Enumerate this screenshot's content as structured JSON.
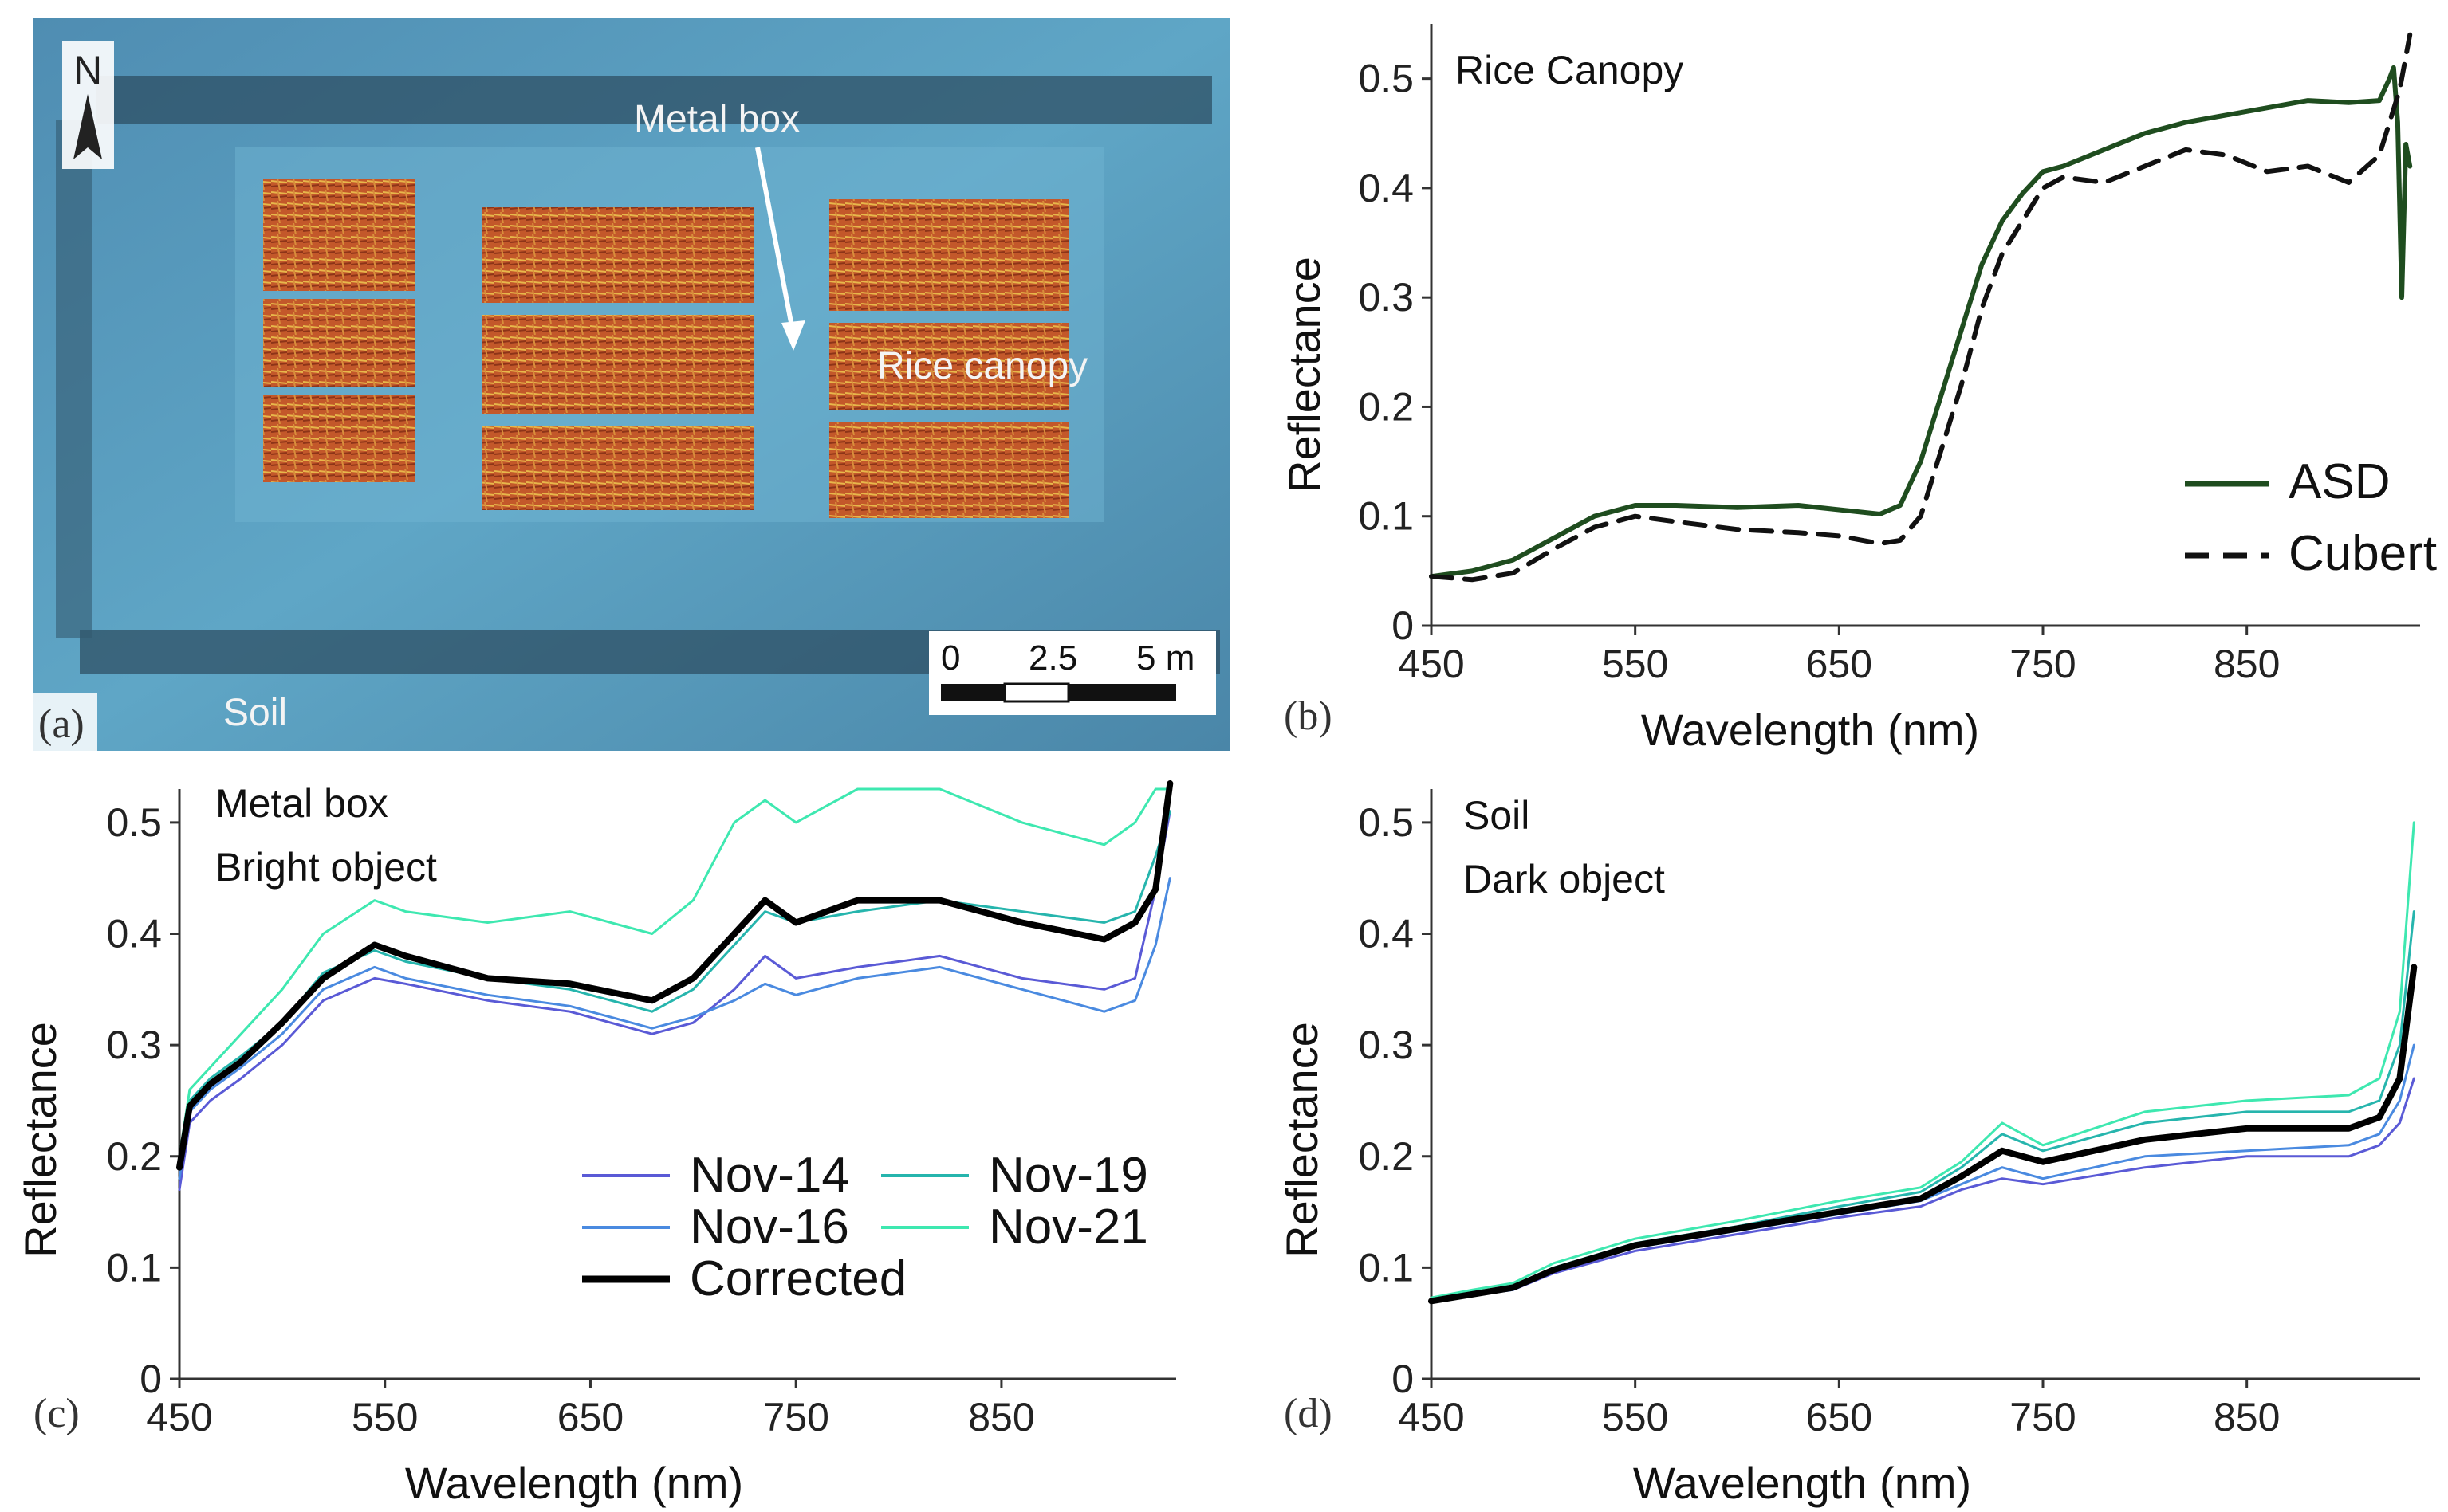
{
  "panel_a": {
    "tag": "(a)",
    "north": "N",
    "labels": {
      "metal_box": "Metal box",
      "rice_canopy": "Rice canopy",
      "soil": "Soil"
    },
    "scale_bar": {
      "t0": "0",
      "t1": "2.5",
      "t2": "5 m"
    }
  },
  "chart_data": [
    {
      "id": "b",
      "panel_tag": "(b)",
      "type": "line",
      "annotation": [
        "Rice Canopy"
      ],
      "xlabel": "Wavelength (nm)",
      "ylabel": "Reflectance",
      "xlim": [
        450,
        935
      ],
      "ylim": [
        0,
        0.55
      ],
      "xticks": [
        450,
        550,
        650,
        750,
        850
      ],
      "yticks": [
        0,
        0.1,
        0.2,
        0.3,
        0.4,
        0.5
      ],
      "ytick_labels": [
        "0",
        "0.1",
        "0.2",
        "0.3",
        "0.4",
        "0.5"
      ],
      "series": [
        {
          "name": "ASD",
          "color": "#1f4d1f",
          "style": "solid",
          "x": [
            450,
            470,
            490,
            510,
            530,
            550,
            570,
            600,
            630,
            650,
            670,
            680,
            690,
            700,
            710,
            720,
            730,
            740,
            750,
            760,
            780,
            800,
            820,
            850,
            880,
            900,
            915,
            920,
            922,
            924,
            926,
            928,
            930
          ],
          "y": [
            0.045,
            0.05,
            0.06,
            0.08,
            0.1,
            0.11,
            0.11,
            0.108,
            0.11,
            0.106,
            0.102,
            0.11,
            0.15,
            0.21,
            0.27,
            0.33,
            0.37,
            0.395,
            0.415,
            0.42,
            0.435,
            0.45,
            0.46,
            0.47,
            0.48,
            0.478,
            0.48,
            0.5,
            0.51,
            0.46,
            0.3,
            0.44,
            0.42
          ]
        },
        {
          "name": "Cubert",
          "color": "#111111",
          "style": "dashed",
          "x": [
            450,
            470,
            490,
            510,
            530,
            550,
            570,
            600,
            630,
            650,
            670,
            680,
            690,
            700,
            710,
            720,
            730,
            740,
            750,
            760,
            780,
            800,
            820,
            840,
            860,
            880,
            900,
            915,
            925,
            930
          ],
          "y": [
            0.045,
            0.042,
            0.048,
            0.07,
            0.09,
            0.1,
            0.095,
            0.088,
            0.085,
            0.082,
            0.075,
            0.078,
            0.1,
            0.16,
            0.22,
            0.29,
            0.34,
            0.37,
            0.4,
            0.41,
            0.405,
            0.42,
            0.435,
            0.43,
            0.415,
            0.42,
            0.405,
            0.43,
            0.49,
            0.54
          ]
        }
      ]
    },
    {
      "id": "c",
      "panel_tag": "(c)",
      "type": "line",
      "annotation": [
        "Metal box",
        "Bright object"
      ],
      "xlabel": "Wavelength (nm)",
      "ylabel": "Reflectance",
      "xlim": [
        450,
        935
      ],
      "ylim": [
        0,
        0.53
      ],
      "xticks": [
        450,
        550,
        650,
        750,
        850
      ],
      "yticks": [
        0,
        0.1,
        0.2,
        0.3,
        0.4,
        0.5
      ],
      "ytick_labels": [
        "0",
        "0.1",
        "0.2",
        "0.3",
        "0.4",
        "0.5"
      ],
      "series": [
        {
          "name": "Nov-14",
          "color": "#5a5ad6",
          "width": 3,
          "x": [
            450,
            455,
            465,
            480,
            500,
            520,
            545,
            560,
            600,
            640,
            680,
            700,
            720,
            735,
            750,
            780,
            820,
            860,
            900,
            915,
            925,
            932
          ],
          "y": [
            0.17,
            0.23,
            0.25,
            0.27,
            0.3,
            0.34,
            0.36,
            0.355,
            0.34,
            0.33,
            0.31,
            0.32,
            0.35,
            0.38,
            0.36,
            0.37,
            0.38,
            0.36,
            0.35,
            0.36,
            0.44,
            0.51
          ]
        },
        {
          "name": "Nov-16",
          "color": "#4a8ae0",
          "width": 3,
          "x": [
            450,
            455,
            465,
            480,
            500,
            520,
            545,
            560,
            600,
            640,
            680,
            700,
            720,
            735,
            750,
            780,
            820,
            860,
            900,
            915,
            925,
            932
          ],
          "y": [
            0.18,
            0.24,
            0.26,
            0.28,
            0.31,
            0.35,
            0.37,
            0.36,
            0.345,
            0.335,
            0.315,
            0.325,
            0.34,
            0.355,
            0.345,
            0.36,
            0.37,
            0.35,
            0.33,
            0.34,
            0.39,
            0.45
          ]
        },
        {
          "name": "Nov-19",
          "color": "#26b5ad",
          "width": 3,
          "x": [
            450,
            455,
            465,
            480,
            500,
            520,
            545,
            560,
            600,
            640,
            680,
            700,
            720,
            735,
            750,
            780,
            820,
            860,
            900,
            915,
            925,
            932
          ],
          "y": [
            0.19,
            0.25,
            0.27,
            0.29,
            0.32,
            0.365,
            0.385,
            0.375,
            0.36,
            0.35,
            0.33,
            0.35,
            0.39,
            0.42,
            0.41,
            0.42,
            0.43,
            0.42,
            0.41,
            0.42,
            0.47,
            0.51
          ]
        },
        {
          "name": "Nov-21",
          "color": "#3ee8b0",
          "width": 3,
          "x": [
            450,
            455,
            465,
            480,
            500,
            520,
            545,
            560,
            600,
            640,
            680,
            700,
            720,
            735,
            750,
            780,
            820,
            860,
            900,
            915,
            925,
            932
          ],
          "y": [
            0.2,
            0.26,
            0.28,
            0.31,
            0.35,
            0.4,
            0.43,
            0.42,
            0.41,
            0.42,
            0.4,
            0.43,
            0.5,
            0.52,
            0.5,
            0.53,
            0.53,
            0.5,
            0.48,
            0.5,
            0.53,
            0.53
          ]
        },
        {
          "name": "Corrected",
          "color": "#000000",
          "width": 8,
          "x": [
            450,
            455,
            465,
            480,
            500,
            520,
            545,
            560,
            600,
            640,
            680,
            700,
            720,
            735,
            750,
            780,
            820,
            860,
            900,
            915,
            925,
            932
          ],
          "y": [
            0.19,
            0.245,
            0.265,
            0.285,
            0.32,
            0.36,
            0.39,
            0.38,
            0.36,
            0.355,
            0.34,
            0.36,
            0.4,
            0.43,
            0.41,
            0.43,
            0.43,
            0.41,
            0.395,
            0.41,
            0.44,
            0.535
          ]
        }
      ]
    },
    {
      "id": "d",
      "panel_tag": "(d)",
      "type": "line",
      "annotation": [
        "Soil",
        "Dark object"
      ],
      "xlabel": "Wavelength (nm)",
      "ylabel": "Reflectance",
      "xlim": [
        450,
        935
      ],
      "ylim": [
        0,
        0.53
      ],
      "xticks": [
        450,
        550,
        650,
        750,
        850
      ],
      "yticks": [
        0,
        0.1,
        0.2,
        0.3,
        0.4,
        0.5
      ],
      "ytick_labels": [
        "0",
        "0.1",
        "0.2",
        "0.3",
        "0.4",
        "0.5"
      ],
      "series": [
        {
          "name": "Nov-14",
          "color": "#5a5ad6",
          "width": 3,
          "x": [
            450,
            470,
            490,
            510,
            550,
            600,
            650,
            690,
            710,
            730,
            750,
            800,
            850,
            900,
            915,
            925,
            932
          ],
          "y": [
            0.07,
            0.075,
            0.08,
            0.095,
            0.115,
            0.13,
            0.145,
            0.155,
            0.17,
            0.18,
            0.175,
            0.19,
            0.2,
            0.2,
            0.21,
            0.23,
            0.27
          ]
        },
        {
          "name": "Nov-16",
          "color": "#4a8ae0",
          "width": 3,
          "x": [
            450,
            470,
            490,
            510,
            550,
            600,
            650,
            690,
            710,
            730,
            750,
            800,
            850,
            900,
            915,
            925,
            932
          ],
          "y": [
            0.07,
            0.075,
            0.08,
            0.097,
            0.118,
            0.133,
            0.148,
            0.16,
            0.175,
            0.19,
            0.18,
            0.2,
            0.205,
            0.21,
            0.22,
            0.25,
            0.3
          ]
        },
        {
          "name": "Nov-19",
          "color": "#26b5ad",
          "width": 3,
          "x": [
            450,
            470,
            490,
            510,
            550,
            600,
            650,
            690,
            710,
            730,
            750,
            800,
            850,
            900,
            915,
            925,
            932
          ],
          "y": [
            0.072,
            0.078,
            0.083,
            0.1,
            0.122,
            0.137,
            0.155,
            0.168,
            0.19,
            0.22,
            0.205,
            0.23,
            0.24,
            0.24,
            0.25,
            0.3,
            0.42
          ]
        },
        {
          "name": "Nov-21",
          "color": "#3ee8b0",
          "width": 3,
          "x": [
            450,
            470,
            490,
            510,
            550,
            600,
            650,
            690,
            710,
            730,
            750,
            800,
            850,
            900,
            915,
            925,
            932
          ],
          "y": [
            0.073,
            0.08,
            0.086,
            0.104,
            0.126,
            0.142,
            0.16,
            0.172,
            0.195,
            0.23,
            0.21,
            0.24,
            0.25,
            0.255,
            0.27,
            0.33,
            0.5
          ]
        },
        {
          "name": "Corrected",
          "color": "#000000",
          "width": 8,
          "x": [
            450,
            470,
            490,
            510,
            550,
            600,
            650,
            690,
            710,
            730,
            750,
            800,
            850,
            900,
            915,
            925,
            932
          ],
          "y": [
            0.07,
            0.076,
            0.082,
            0.098,
            0.12,
            0.135,
            0.15,
            0.162,
            0.182,
            0.205,
            0.195,
            0.215,
            0.225,
            0.225,
            0.235,
            0.27,
            0.37
          ]
        }
      ]
    }
  ]
}
